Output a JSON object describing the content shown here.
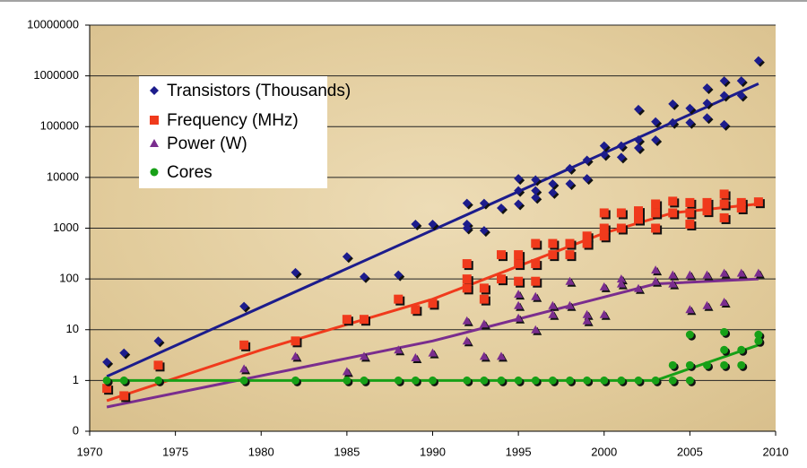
{
  "chart_data": {
    "type": "scatter",
    "log_y": true,
    "grid": true,
    "legend": "upper left",
    "xlim": [
      1970,
      2010
    ],
    "xticks": [
      1970,
      1975,
      1980,
      1985,
      1990,
      1995,
      2000,
      2005,
      2010
    ],
    "ylim": [
      0.1,
      10000000
    ],
    "yticks": [
      {
        "value": 0.1,
        "label": "0"
      },
      1,
      10,
      100,
      1000,
      10000,
      100000,
      1000000,
      10000000
    ],
    "series": [
      {
        "name": "Transistors (Thousands)",
        "color": "#1c1c8c",
        "marker": "diamond",
        "x": [
          1971,
          1972,
          1974,
          1979,
          1982,
          1985,
          1986,
          1988,
          1989,
          1990,
          1992,
          1992,
          1992,
          1993,
          1993,
          1994,
          1995,
          1995,
          1995,
          1996,
          1996,
          1996,
          1997,
          1997,
          1998,
          1998,
          1999,
          1999,
          2000,
          2000,
          2001,
          2001,
          2002,
          2002,
          2002,
          2003,
          2003,
          2004,
          2004,
          2005,
          2005,
          2006,
          2006,
          2006,
          2007,
          2007,
          2007,
          2008,
          2008,
          2009
        ],
        "values": [
          2.3,
          3.5,
          6,
          29,
          134,
          275,
          110,
          120,
          1200,
          1200,
          3100,
          1200,
          1000,
          3100,
          900,
          2500,
          5500,
          9500,
          3000,
          5500,
          9000,
          4000,
          7500,
          5000,
          7500,
          15000,
          22000,
          9500,
          42000,
          28000,
          42000,
          25000,
          220000,
          55000,
          38000,
          125000,
          55000,
          280000,
          120000,
          230000,
          120000,
          580000,
          290000,
          150000,
          800000,
          410000,
          110000,
          800000,
          410000,
          2000000
        ],
        "trend": {
          "x": [
            1971,
            2009
          ],
          "values": [
            1.2,
            700000
          ]
        }
      },
      {
        "name": "Frequency (MHz)",
        "color": "#f03a1c",
        "marker": "square",
        "x": [
          1971,
          1972,
          1974,
          1979,
          1982,
          1985,
          1986,
          1988,
          1989,
          1990,
          1992,
          1992,
          1992,
          1993,
          1993,
          1994,
          1994,
          1995,
          1995,
          1995,
          1996,
          1996,
          1996,
          1997,
          1997,
          1998,
          1998,
          1999,
          1999,
          2000,
          2000,
          2000,
          2001,
          2001,
          2002,
          2002,
          2003,
          2003,
          2003,
          2004,
          2004,
          2005,
          2005,
          2005,
          2006,
          2006,
          2007,
          2007,
          2007,
          2008,
          2008,
          2009
        ],
        "values": [
          0.7,
          0.5,
          2,
          5,
          6,
          16,
          16,
          40,
          25,
          33,
          200,
          100,
          66,
          66,
          40,
          300,
          100,
          300,
          200,
          90,
          500,
          200,
          90,
          500,
          300,
          500,
          300,
          700,
          500,
          2000,
          1000,
          700,
          2000,
          1000,
          2200,
          1500,
          3000,
          2000,
          1000,
          3400,
          2000,
          3200,
          2000,
          1200,
          3200,
          2200,
          4700,
          3000,
          1600,
          3200,
          2500,
          3300
        ],
        "trend": {
          "x": [
            1971,
            1980,
            1990,
            2000,
            2004,
            2009
          ],
          "values": [
            0.4,
            4,
            40,
            800,
            2000,
            3000
          ]
        }
      },
      {
        "name": "Power (W)",
        "color": "#7a2d8e",
        "marker": "triangle",
        "x": [
          1979,
          1982,
          1985,
          1986,
          1988,
          1989,
          1990,
          1992,
          1992,
          1993,
          1993,
          1994,
          1995,
          1995,
          1995,
          1996,
          1996,
          1997,
          1997,
          1998,
          1998,
          1999,
          1999,
          2000,
          2000,
          2001,
          2001,
          2002,
          2003,
          2003,
          2004,
          2004,
          2005,
          2005,
          2006,
          2006,
          2007,
          2007,
          2008,
          2009
        ],
        "values": [
          1.7,
          3,
          1.5,
          3,
          4,
          2.8,
          3.5,
          15,
          6,
          13,
          3,
          3,
          50,
          30,
          17,
          45,
          10,
          30,
          20,
          90,
          30,
          20,
          15,
          70,
          20,
          100,
          80,
          65,
          150,
          90,
          120,
          80,
          120,
          25,
          120,
          30,
          130,
          35,
          130,
          130
        ],
        "trend": {
          "x": [
            1971,
            1990,
            2003,
            2009
          ],
          "values": [
            0.3,
            6,
            80,
            100
          ]
        }
      },
      {
        "name": "Cores",
        "color": "#17a017",
        "marker": "circle",
        "x": [
          1971,
          1972,
          1974,
          1979,
          1982,
          1985,
          1986,
          1988,
          1989,
          1990,
          1992,
          1993,
          1994,
          1995,
          1996,
          1997,
          1998,
          1999,
          2000,
          2001,
          2002,
          2003,
          2004,
          2004,
          2005,
          2005,
          2005,
          2006,
          2007,
          2007,
          2007,
          2008,
          2008,
          2009,
          2009
        ],
        "values": [
          1,
          1,
          1,
          1,
          1,
          1,
          1,
          1,
          1,
          1,
          1,
          1,
          1,
          1,
          1,
          1,
          1,
          1,
          1,
          1,
          1,
          1,
          2,
          1,
          8,
          2,
          1,
          2,
          9,
          4,
          2,
          4,
          2,
          8,
          6
        ],
        "trend": {
          "x": [
            1971,
            2003,
            2009
          ],
          "values": [
            1,
            1,
            5
          ]
        }
      }
    ]
  }
}
